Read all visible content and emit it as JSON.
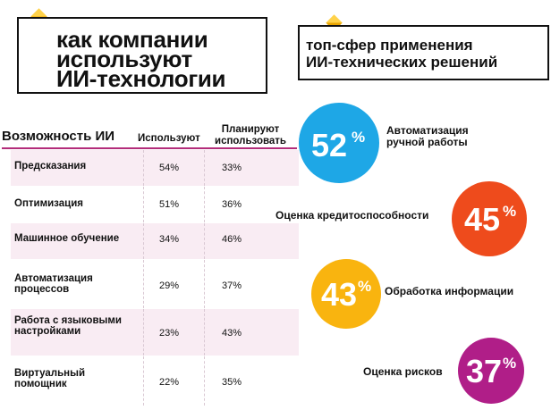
{
  "header": {
    "title_lines": [
      "как компании",
      "используют",
      "ИИ-технологии"
    ],
    "right_title_lines": [
      "топ-сфер применения",
      "ИИ-технических решений"
    ]
  },
  "table": {
    "col_capability": "Возможность ИИ",
    "col_use": "Используют",
    "col_plan_lines": [
      "Планируют",
      "использовать"
    ],
    "rows": [
      {
        "label_lines": [
          "Предсказания"
        ],
        "use": "54%",
        "plan": "33%"
      },
      {
        "label_lines": [
          "Оптимизация"
        ],
        "use": "51%",
        "plan": "36%"
      },
      {
        "label_lines": [
          "Машинное обучение"
        ],
        "use": "34%",
        "plan": "46%"
      },
      {
        "label_lines": [
          "Автоматизация",
          "процессов"
        ],
        "use": "29%",
        "plan": "37%"
      },
      {
        "label_lines": [
          "Работа с языковыми",
          "настройками"
        ],
        "use": "23%",
        "plan": "43%"
      },
      {
        "label_lines": [
          "Виртуальный",
          "помощник"
        ],
        "use": "22%",
        "plan": "35%"
      }
    ]
  },
  "highlights": [
    {
      "value": "52",
      "unit": "%",
      "label_lines": [
        "Автоматизация",
        "ручной работы"
      ],
      "color": "#1ea7e6"
    },
    {
      "value": "45",
      "unit": "%",
      "label_lines": [
        "Оценка кредитоспособности"
      ],
      "color": "#ee4b1c"
    },
    {
      "value": "43",
      "unit": "%",
      "label_lines": [
        "Обработка информации"
      ],
      "color": "#f9b40f"
    },
    {
      "value": "37",
      "unit": "%",
      "label_lines": [
        "Оценка рисков"
      ],
      "color": "#b01e88"
    }
  ],
  "colors": {
    "accent_line": "#b32c7a",
    "row_band": "#f9ecf3",
    "diamond": "#f2b705"
  }
}
